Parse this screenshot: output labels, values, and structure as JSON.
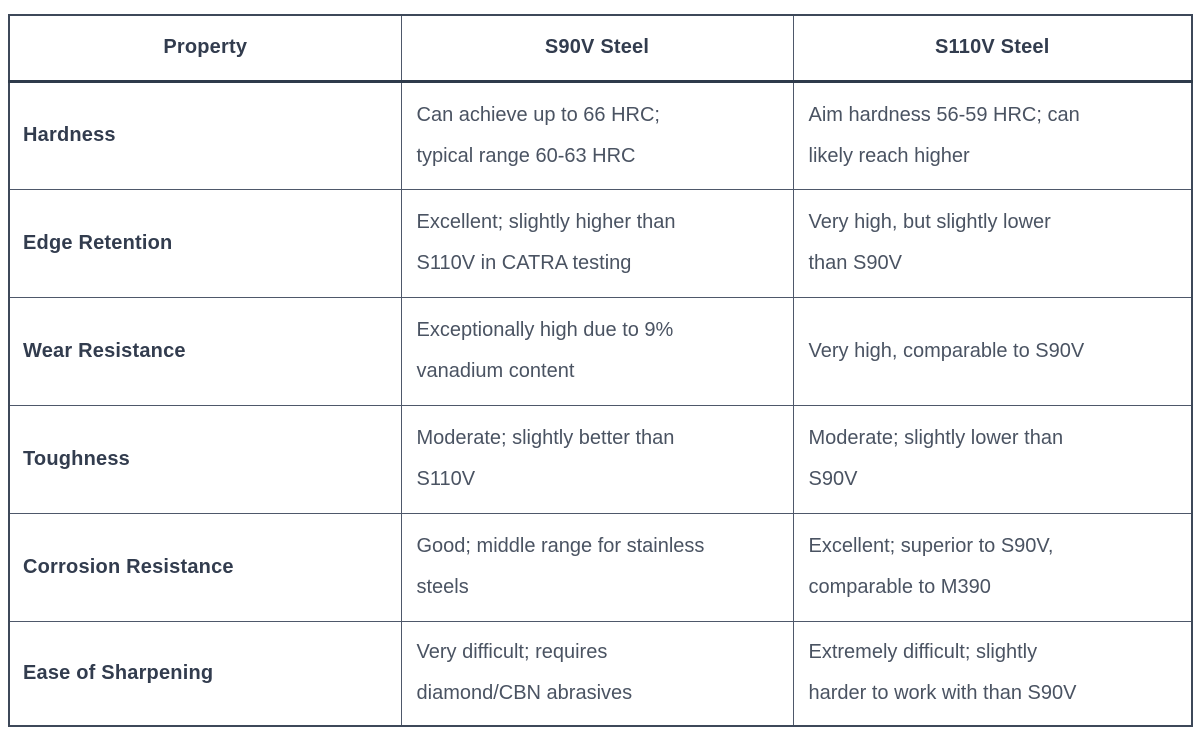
{
  "table": {
    "columns": [
      "Property",
      "S90V Steel",
      "S110V Steel"
    ],
    "rows": [
      {
        "property": "Hardness",
        "s90v": "Can achieve up to 66 HRC;\ntypical range 60-63 HRC",
        "s110v": "Aim hardness 56-59 HRC; can\nlikely reach higher"
      },
      {
        "property": "Edge Retention",
        "s90v": "Excellent; slightly higher than\nS110V in CATRA testing",
        "s110v": "Very high, but slightly lower\nthan S90V"
      },
      {
        "property": "Wear Resistance",
        "s90v": "Exceptionally high due to 9%\nvanadium content",
        "s110v": "Very high, comparable to S90V"
      },
      {
        "property": "Toughness",
        "s90v": "Moderate; slightly better than\nS110V",
        "s110v": "Moderate; slightly lower than\nS90V"
      },
      {
        "property": "Corrosion Resistance",
        "s90v": "Good; middle range for stainless\nsteels",
        "s110v": "Excellent; superior to S90V,\ncomparable to M390"
      },
      {
        "property": "Ease of Sharpening",
        "s90v": "Very difficult; requires\ndiamond/CBN abrasives",
        "s110v": "Extremely difficult; slightly\nharder to work with than S90V"
      }
    ],
    "colors": {
      "outer_border": "#3d4859",
      "inner_border": "#4e586a",
      "header_rule": "#2f3b4b",
      "header_text": "#323c4e",
      "body_text": "#4a5362",
      "cell_background": "#ffffff"
    }
  }
}
